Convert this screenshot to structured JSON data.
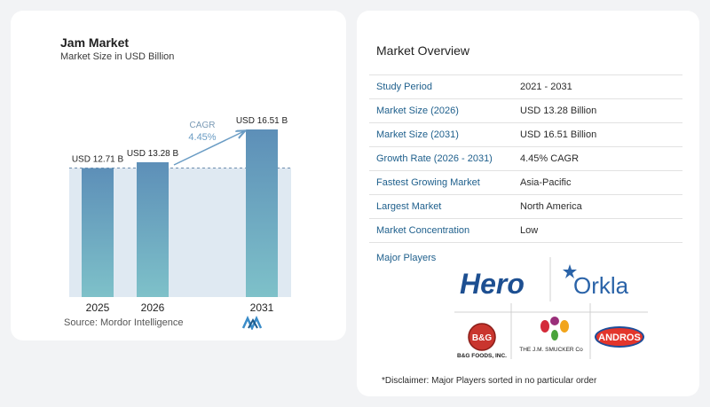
{
  "chart_panel": {
    "title": "Jam Market",
    "subtitle": "Market Size in USD Billion",
    "source": "Source:  Mordor Intelligence",
    "cagr_label": "CAGR",
    "cagr_value": "4.45%"
  },
  "chart_data": {
    "type": "bar",
    "title": "Jam Market",
    "subtitle": "Market Size in USD Billion",
    "categories": [
      "2025",
      "2026",
      "2031"
    ],
    "values": [
      12.71,
      13.28,
      16.51
    ],
    "value_labels": [
      "USD 12.71 B",
      "USD 13.28 B",
      "USD 16.51 B"
    ],
    "ylim": [
      0,
      16.51
    ],
    "grid": false,
    "annotation": {
      "text": "CAGR 4.45%",
      "from": "2026",
      "to": "2031"
    },
    "colors": {
      "bar_top": "#5d8fb8",
      "bar_bottom": "#7ec1c9",
      "band": "#dfe9f2"
    }
  },
  "overview": {
    "title": "Market Overview",
    "rows": [
      {
        "label": "Study Period",
        "value": "2021 - 2031"
      },
      {
        "label": "Market Size (2026)",
        "value": "USD 13.28 Billion"
      },
      {
        "label": "Market Size (2031)",
        "value": "USD 16.51 Billion"
      },
      {
        "label": "Growth Rate (2026 - 2031)",
        "value": "4.45% CAGR"
      },
      {
        "label": "Fastest Growing Market",
        "value": "Asia-Pacific"
      },
      {
        "label": "Largest Market",
        "value": "North America"
      },
      {
        "label": "Market Concentration",
        "value": "Low"
      }
    ],
    "players_title": "Major Players",
    "players": [
      "Hero",
      "Orkla",
      "B&G FOODS, INC.",
      "THE J.M. SMUCKER Co",
      "ANDROS"
    ],
    "disclaimer": "*Disclaimer: Major Players sorted in no particular order"
  }
}
